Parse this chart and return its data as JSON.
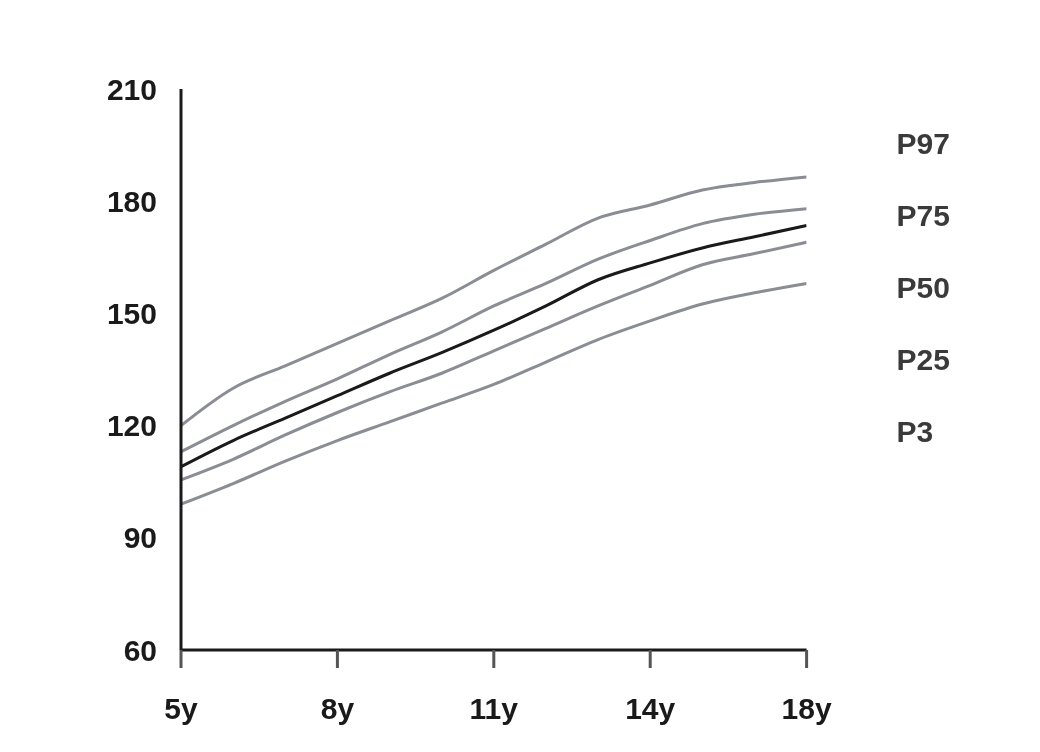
{
  "chart_data": {
    "type": "line",
    "categories": [
      "5y",
      null,
      null,
      "8y",
      null,
      null,
      "11y",
      null,
      null,
      "14y",
      null,
      null,
      "18y"
    ],
    "ylim": [
      60,
      210
    ],
    "yticks": [
      60,
      90,
      120,
      150,
      180,
      210
    ],
    "grid": false,
    "legend": "right",
    "marker": "none",
    "line_style": "solid",
    "series": [
      {
        "name": "P97",
        "color": "#8a8d93",
        "values": [
          120,
          130,
          136,
          142,
          148,
          154,
          161.5,
          168.5,
          175.5,
          179,
          183,
          185,
          186.5
        ]
      },
      {
        "name": "P75",
        "color": "#8a8d93",
        "values": [
          113,
          120,
          126.5,
          132.5,
          139,
          145,
          152,
          158,
          164.5,
          169.5,
          174,
          176.5,
          178
        ]
      },
      {
        "name": "P50",
        "color": "#1a1a1a",
        "values": [
          109,
          116,
          122,
          128,
          134,
          139.5,
          145.5,
          152,
          159,
          163.5,
          167.5,
          170.5,
          173.5
        ]
      },
      {
        "name": "P25",
        "color": "#8a8d93",
        "values": [
          105.5,
          111,
          117.5,
          123.5,
          129,
          134,
          140,
          146,
          152,
          157.5,
          163,
          166,
          169
        ]
      },
      {
        "name": "P3",
        "color": "#8a8d93",
        "values": [
          99,
          104.5,
          110.5,
          116,
          121,
          126,
          131,
          137,
          143,
          148,
          152.5,
          155.5,
          158
        ]
      }
    ]
  }
}
